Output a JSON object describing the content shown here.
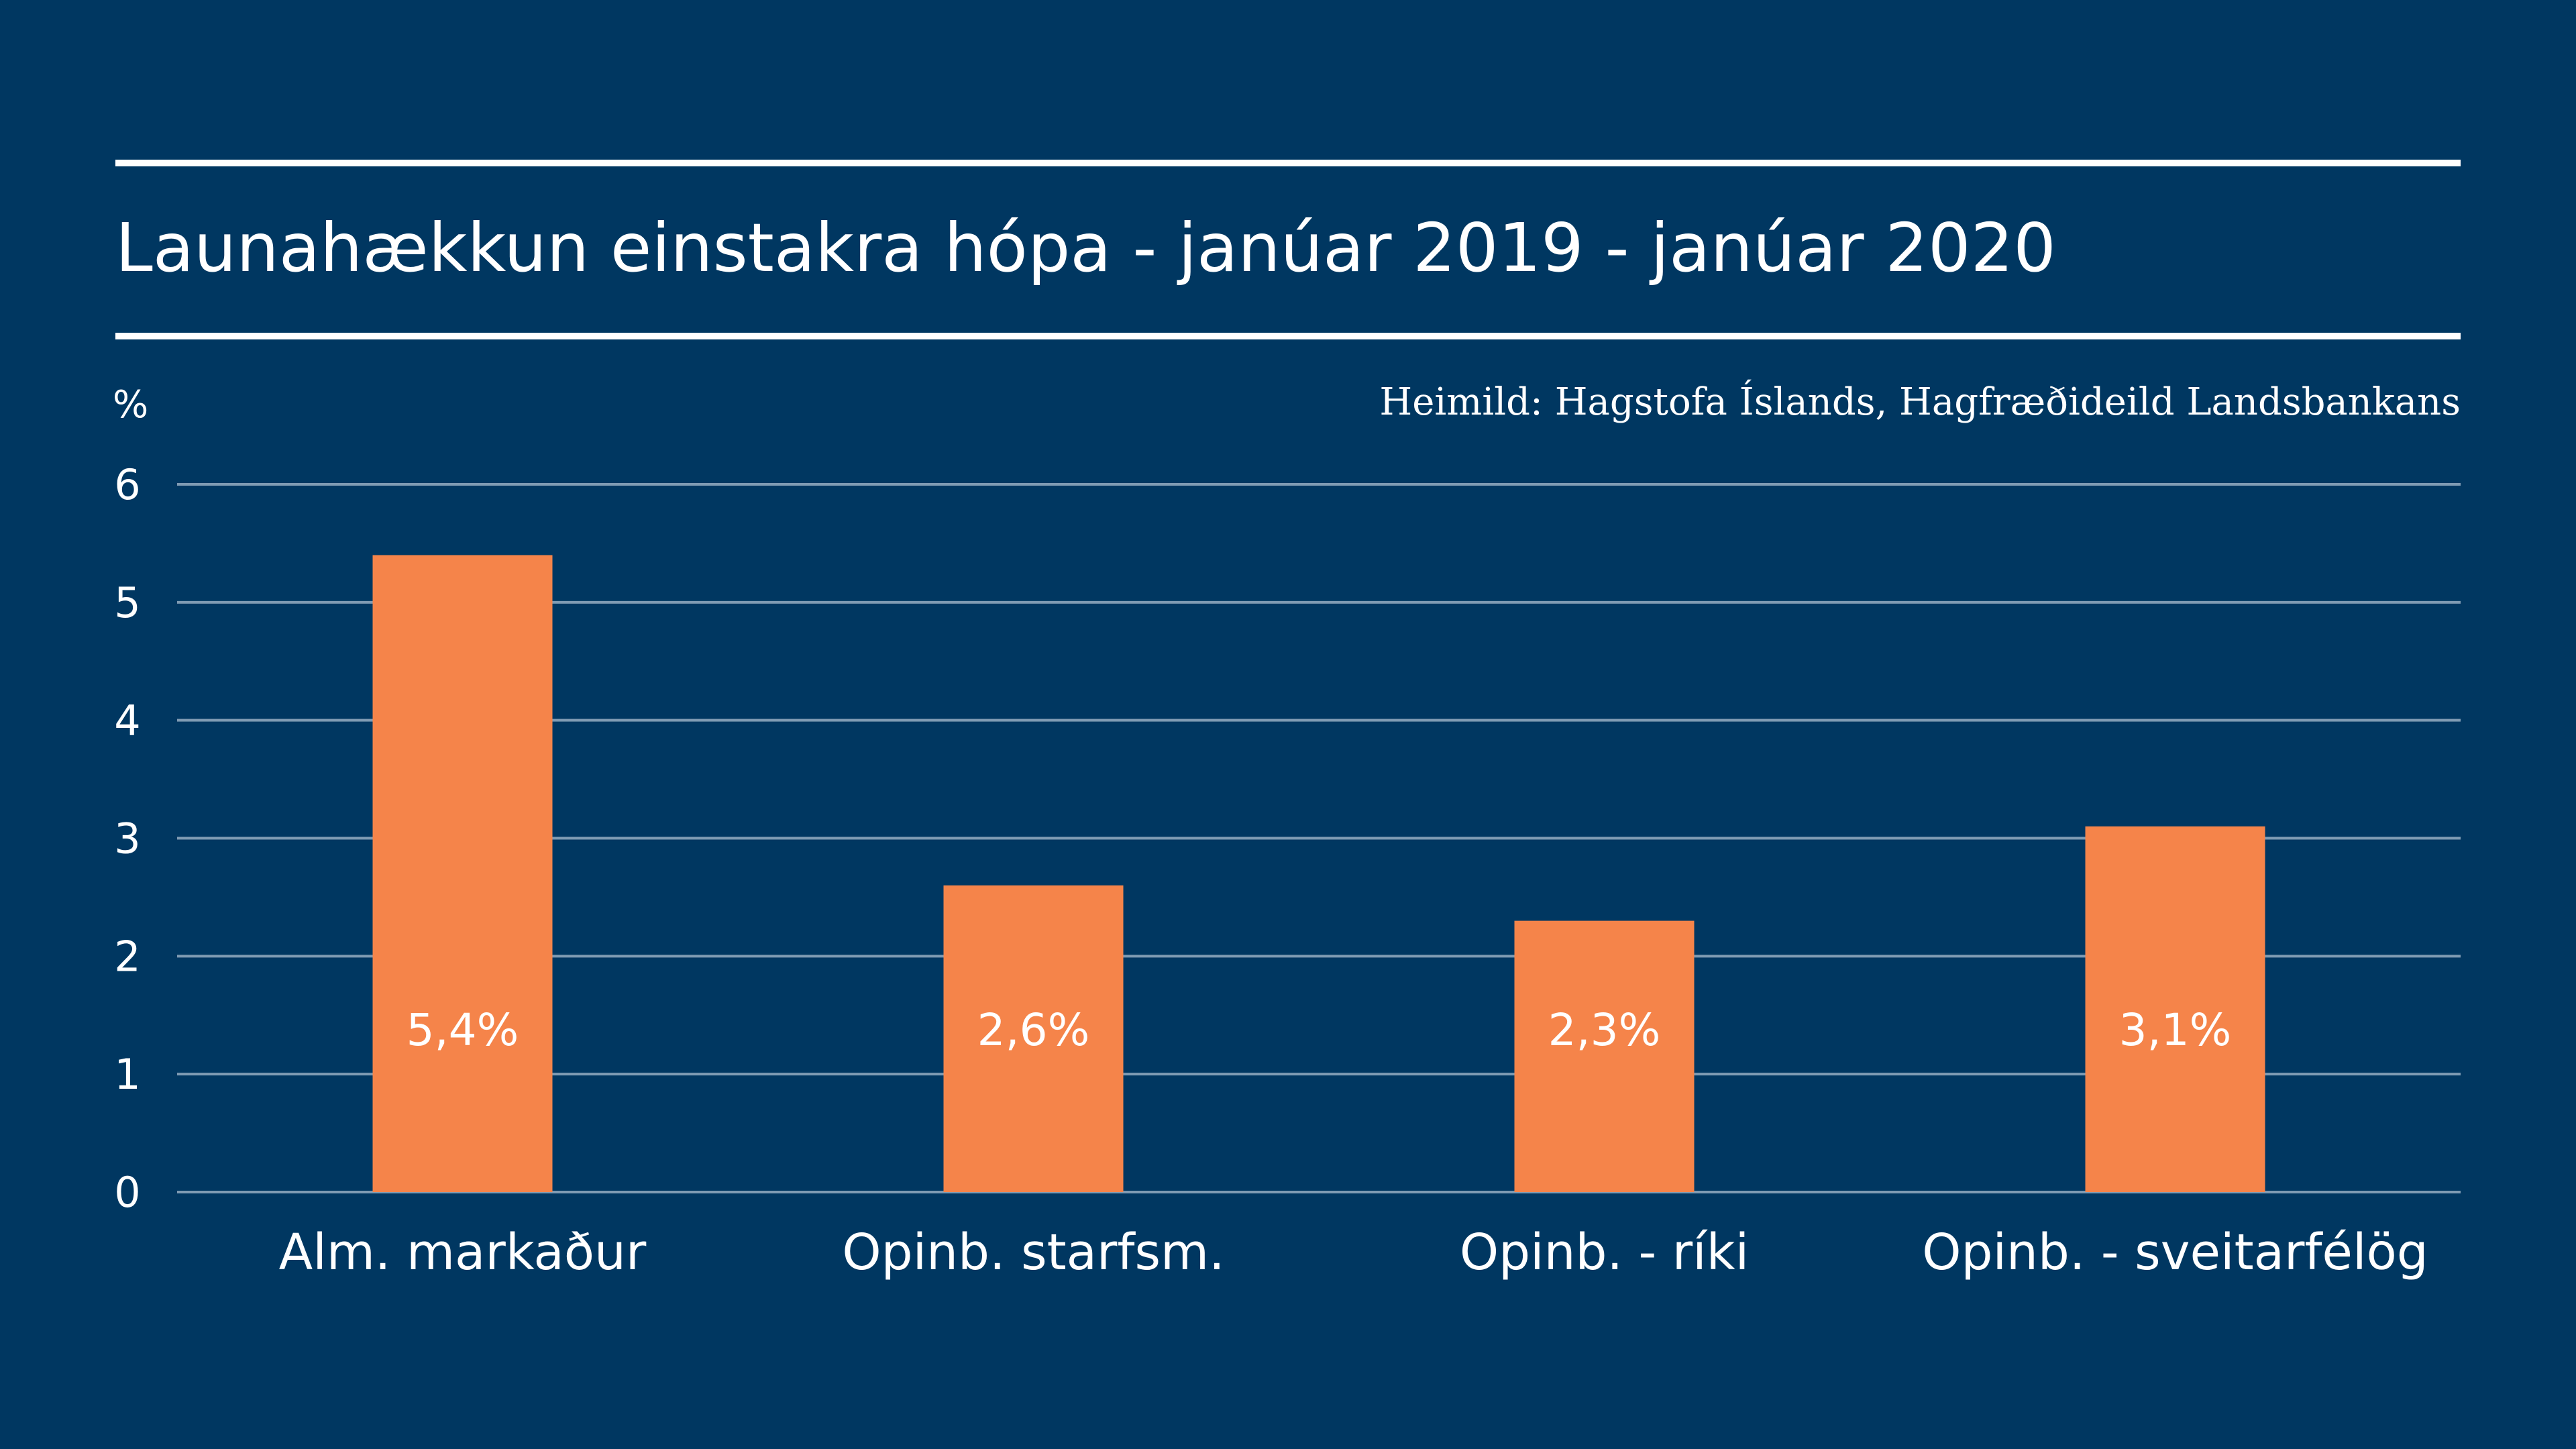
{
  "chart_data": {
    "type": "bar",
    "title": "Launahækkun einstakra hópa - janúar 2019 - janúar 2020",
    "source": "Heimild: Hagstofa Íslands, Hagfræðideild Landsbankans",
    "ylabel": "%",
    "xlabel": "",
    "ylim": [
      0,
      6
    ],
    "yticks": [
      "0",
      "1",
      "2",
      "3",
      "4",
      "5",
      "6"
    ],
    "grid": true,
    "categories": [
      "Alm. markaður",
      "Opinb. starfsm.",
      "Opinb. - ríki",
      "Opinb. - sveitarfélög"
    ],
    "values": [
      5.4,
      2.6,
      2.3,
      3.1
    ],
    "data_labels": [
      "5,4%",
      "2,6%",
      "2,3%",
      "3,1%"
    ],
    "colors": {
      "background": "#003761",
      "bar": "#f5844a",
      "grid": "#7f9bb3",
      "text": "#ffffff"
    }
  }
}
